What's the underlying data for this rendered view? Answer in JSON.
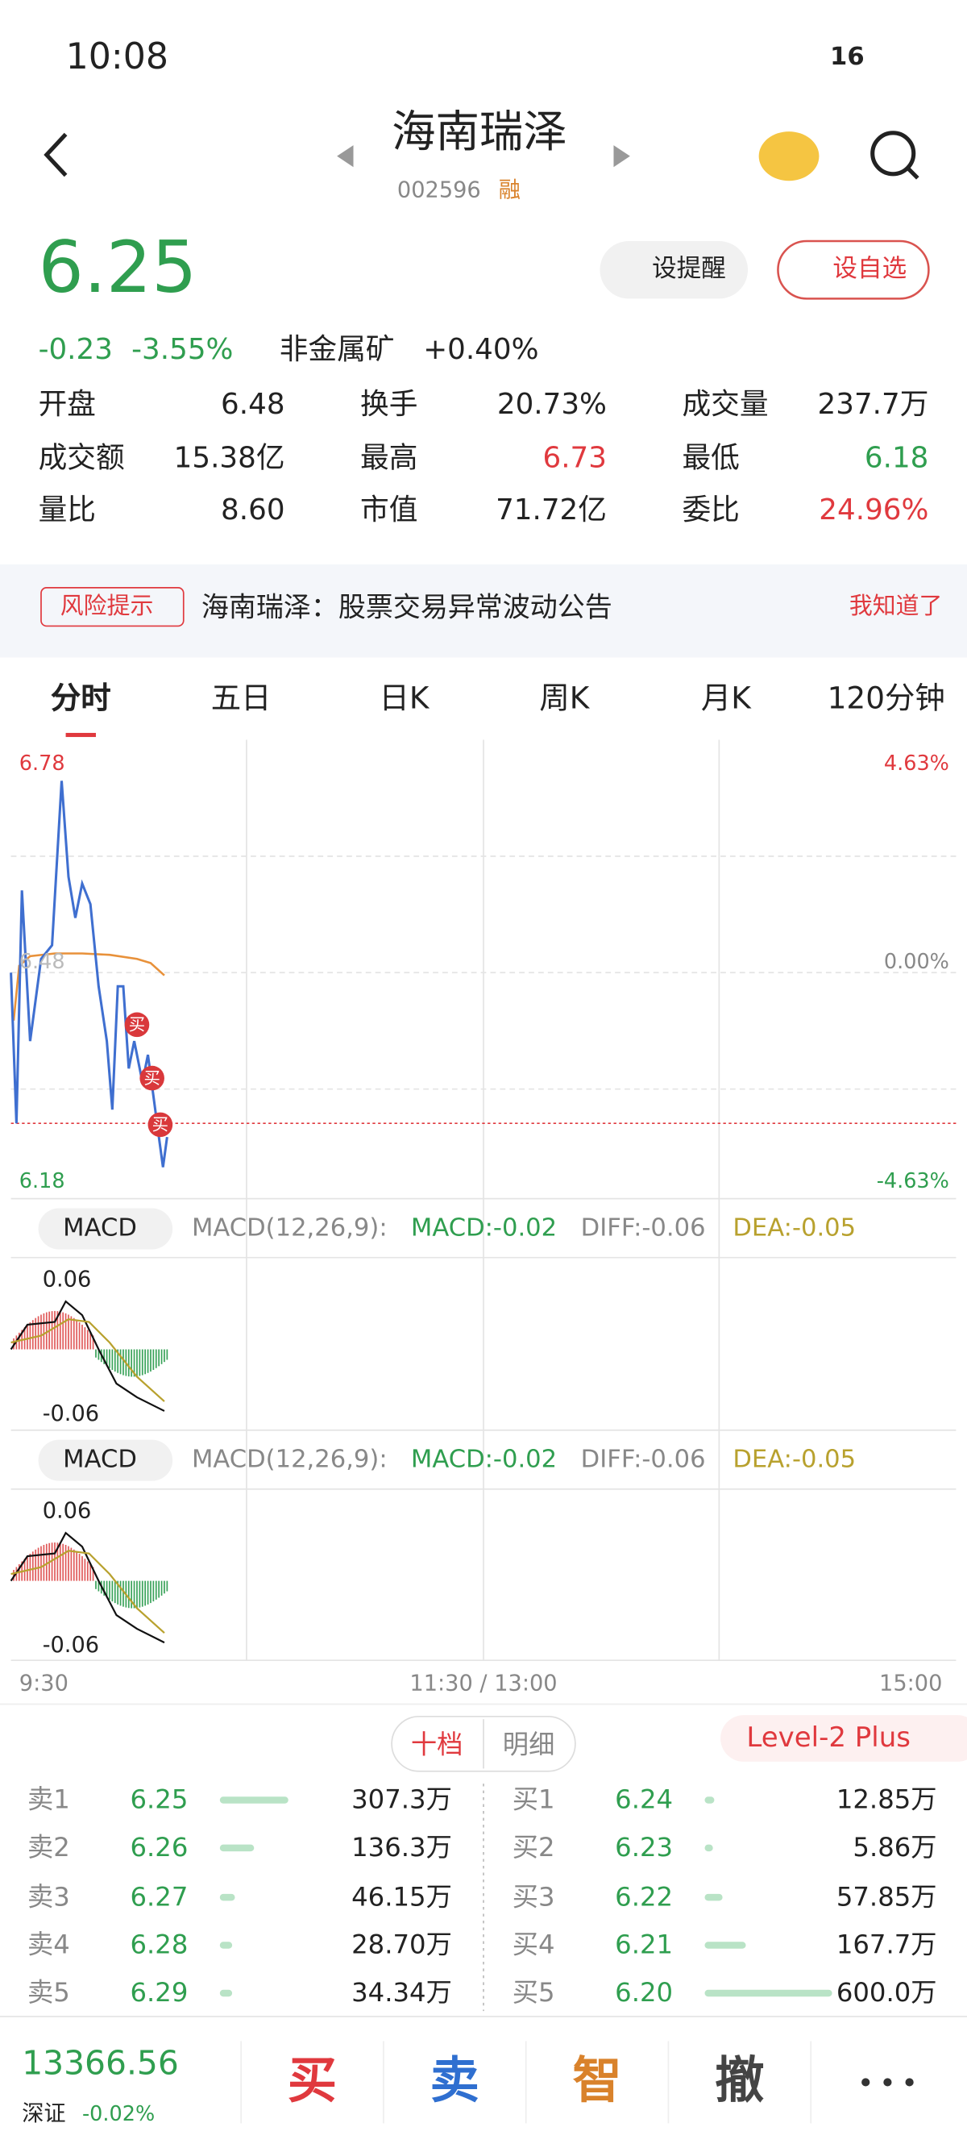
{
  "status": {
    "time": "10:08",
    "battery": "16"
  },
  "header": {
    "title": "海南瑞泽",
    "code": "002596",
    "tag": "融"
  },
  "quote": {
    "price": "6.25",
    "change": "-0.23",
    "pct": "-3.55%",
    "sector": "非金属矿",
    "sector_pct": "+0.40%",
    "remind": "设提醒",
    "watch": "设自选"
  },
  "stats": [
    [
      "开盘",
      "6.48"
    ],
    [
      "换手",
      "20.73%"
    ],
    [
      "成交量",
      "237.7万"
    ],
    [
      "成交额",
      "15.38亿"
    ],
    [
      "最高",
      "6.73"
    ],
    [
      "最低",
      "6.18"
    ],
    [
      "量比",
      "8.60"
    ],
    [
      "市值",
      "71.72亿"
    ],
    [
      "委比",
      "24.96%"
    ]
  ],
  "notice": {
    "tag": "风险提示",
    "text": "海南瑞泽：股票交易异常波动公告",
    "action": "我知道了"
  },
  "tabs": [
    "分时",
    "五日",
    "日K",
    "周K",
    "月K",
    "120分钟"
  ],
  "chart": {
    "price_high": "6.78",
    "price_low": "6.18",
    "pct_high": "4.63%",
    "pct_mid": "0.00%",
    "pct_low": "-4.63%",
    "open_label": "6.48",
    "buy_mark": "买"
  },
  "macd": [
    {
      "label": "MACD",
      "params": "MACD(12,26,9):",
      "macd": "MACD:-0.02",
      "diff": "DIFF:-0.06",
      "dea": "DEA:-0.05",
      "top": "0.06",
      "bottom": "-0.06"
    },
    {
      "label": "MACD",
      "params": "MACD(12,26,9):",
      "macd": "MACD:-0.02",
      "diff": "DIFF:-0.06",
      "dea": "DEA:-0.05",
      "top": "0.06",
      "bottom": "-0.06"
    }
  ],
  "times": [
    "9:30",
    "11:30 / 13:00",
    "15:00"
  ],
  "orderbook": {
    "tabs": [
      "十档",
      "明细"
    ],
    "level2": "Level-2 Plus",
    "sells": [
      [
        "卖1",
        "6.25",
        "307.3万"
      ],
      [
        "卖2",
        "6.26",
        "136.3万"
      ],
      [
        "卖3",
        "6.27",
        "46.15万"
      ],
      [
        "卖4",
        "6.28",
        "28.70万"
      ],
      [
        "卖5",
        "6.29",
        "34.34万"
      ]
    ],
    "buys": [
      [
        "买1",
        "6.24",
        "12.85万"
      ],
      [
        "买2",
        "6.23",
        "5.86万"
      ],
      [
        "买3",
        "6.22",
        "57.85万"
      ],
      [
        "买4",
        "6.21",
        "167.7万"
      ],
      [
        "买5",
        "6.20",
        "600.0万"
      ]
    ]
  },
  "bottom": {
    "index": "13366.56",
    "market": "深证",
    "index_pct": "-0.02%",
    "actions": [
      "买",
      "卖",
      "智",
      "撤"
    ]
  }
}
